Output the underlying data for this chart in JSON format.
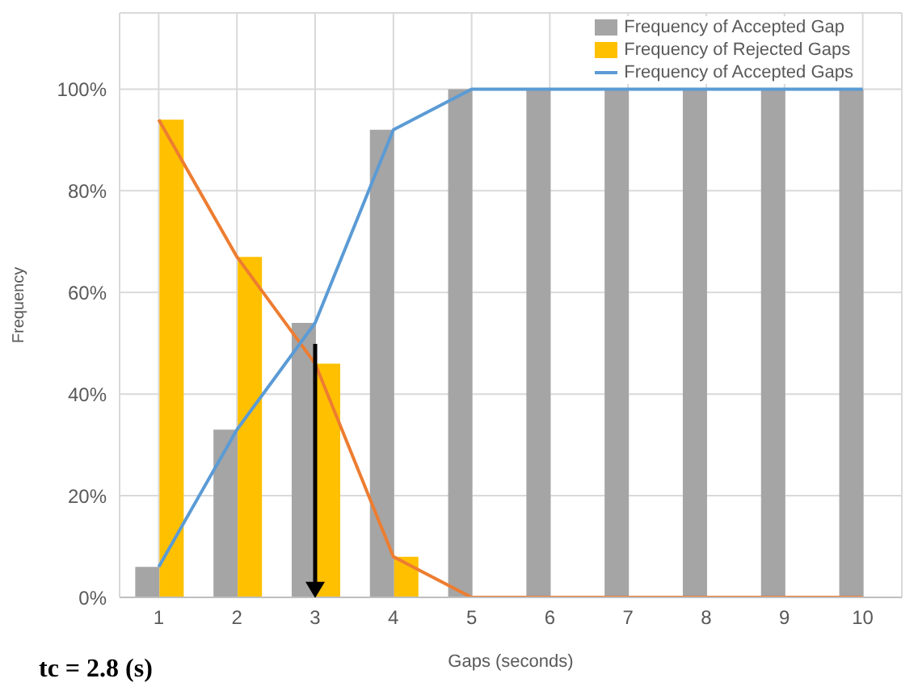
{
  "chart_data": {
    "type": "bar",
    "categories": [
      "1",
      "2",
      "3",
      "4",
      "5",
      "6",
      "7",
      "8",
      "9",
      "10"
    ],
    "xlabel": "Gaps (seconds)",
    "ylabel": "Frequency",
    "series": [
      {
        "name": "Frequency of Accepted Gap",
        "color": "#a5a5a5",
        "values": [
          6,
          33,
          54,
          92,
          100,
          100,
          100,
          100,
          100,
          100
        ]
      },
      {
        "name": "Frequency of Rejected Gaps",
        "color": "#ffc000",
        "values": [
          94,
          67,
          46,
          8,
          0,
          0,
          0,
          0,
          0,
          0
        ]
      },
      {
        "type": "line",
        "color": "#ed7d31",
        "values": [
          94,
          67,
          46,
          8,
          0,
          0,
          0,
          0,
          0,
          0
        ]
      },
      {
        "type": "line",
        "name": "Frequency of Accepted Gaps",
        "color": "#5b9bd5",
        "values": [
          6,
          33,
          54,
          92,
          100,
          100,
          100,
          100,
          100,
          100
        ]
      }
    ],
    "ylim": [
      0,
      115
    ],
    "yticks": [
      {
        "value": 0,
        "label": "0%"
      },
      {
        "value": 20,
        "label": "20%"
      },
      {
        "value": 40,
        "label": "40%"
      },
      {
        "value": 60,
        "label": "60%"
      },
      {
        "value": 80,
        "label": "80%"
      },
      {
        "value": 100,
        "label": "100%"
      }
    ],
    "grid": true,
    "legend": "top right",
    "marker": "none",
    "annotations": [
      "tc = 2.8 (s)"
    ]
  }
}
